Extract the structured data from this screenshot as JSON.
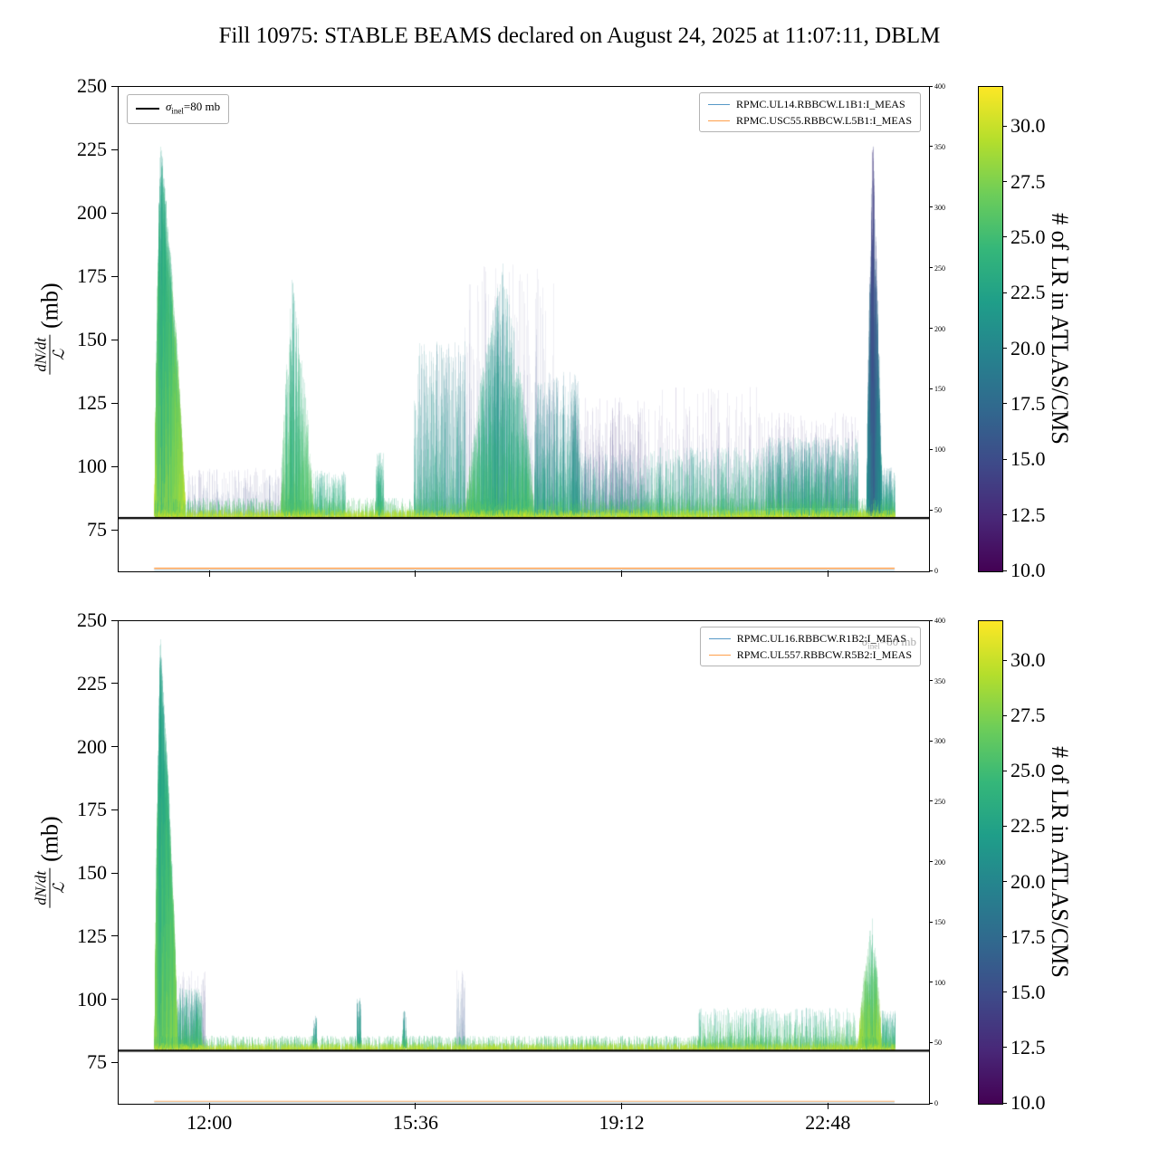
{
  "title": "Fill 10975: STABLE BEAMS declared on August 24, 2025 at 11:07:11, DBLM",
  "background": "#ffffff",
  "colors": {
    "viridis_stops": [
      "#440154",
      "#482878",
      "#3e4a89",
      "#31688e",
      "#26828e",
      "#1f9e89",
      "#35b779",
      "#6dcd59",
      "#b4de2c",
      "#fde725"
    ],
    "legend_lines": [
      "#1f77b4",
      "#ff7f0e"
    ],
    "sigma_line": "#000000"
  },
  "ylabel": {
    "numerator": "dN/dt",
    "denominator": "ℒ",
    "unit": "(mb)"
  },
  "colorbar": {
    "label": "# of LR in ATLAS/CMS",
    "vmin": 10.0,
    "vmax": 31.8,
    "ticks": [
      10.0,
      12.5,
      15.0,
      17.5,
      20.0,
      22.5,
      25.0,
      27.5,
      30.0
    ]
  },
  "axes": {
    "ylim": [
      59,
      250
    ],
    "yticks": [
      75,
      100,
      125,
      150,
      175,
      200,
      225,
      250
    ],
    "xlim_hours": [
      10.4,
      24.55
    ],
    "xticks": [
      {
        "h": 12.0,
        "label": "12:00"
      },
      {
        "h": 15.6,
        "label": "15:36"
      },
      {
        "h": 19.2,
        "label": "19:12"
      },
      {
        "h": 22.8,
        "label": "22:48"
      }
    ],
    "right_lim": [
      0,
      400
    ],
    "right_ticks": [
      0,
      50,
      100,
      150,
      200,
      250,
      300,
      350,
      400
    ]
  },
  "chart_data": [
    {
      "type": "spike-scatter",
      "position": "top",
      "legend": [
        "RPMC.UL14.RBBCW.L1B1:I_MEAS",
        "RPMC.USC55.RBBCW.L5B1:I_MEAS"
      ],
      "sigma_legend": {
        "symbol": "σ",
        "subscript": "inel",
        "suffix": "=80 mb"
      },
      "sigma_value": 80,
      "data_range_hours": [
        11.02,
        23.95
      ],
      "channel_lines": [
        {
          "right_axis_value": 2.5,
          "color": "#ff7f0e",
          "alpha": 0.9
        },
        {
          "right_axis_value": 1.0,
          "color": "#1f77b4",
          "alpha": 0.35
        }
      ],
      "clusters": [
        {
          "t0": 11.6,
          "t1": 13.3,
          "base": 81,
          "peak": 100,
          "n": 500,
          "exp": 2.6,
          "c0": 13,
          "c1": 18,
          "alpha": 0.1,
          "shape": "flat"
        },
        {
          "t0": 16.4,
          "t1": 18.0,
          "base": 82,
          "peak": 180,
          "n": 500,
          "exp": 2.6,
          "c0": 13,
          "c1": 18,
          "alpha": 0.08,
          "shape": "flat"
        },
        {
          "t0": 18.3,
          "t1": 19.6,
          "base": 82,
          "peak": 128,
          "n": 600,
          "exp": 2.6,
          "c0": 12,
          "c1": 17,
          "alpha": 0.1,
          "shape": "flat"
        },
        {
          "t0": 19.6,
          "t1": 21.7,
          "base": 83,
          "peak": 132,
          "n": 350,
          "exp": 2.4,
          "c0": 12,
          "c1": 16,
          "alpha": 0.09,
          "shape": "flat"
        },
        {
          "t0": 21.7,
          "t1": 23.3,
          "base": 84,
          "peak": 122,
          "n": 500,
          "exp": 2.2,
          "c0": 12,
          "c1": 17,
          "alpha": 0.1,
          "shape": "flat"
        },
        {
          "t0": 11.02,
          "t1": 11.55,
          "tpeak": 11.12,
          "base": 81,
          "peak": 232,
          "n": 3800,
          "exp": 1.7,
          "c0": 20,
          "c1": 31.5,
          "alpha": 0.18,
          "shape": "tri"
        },
        {
          "t0": 13.22,
          "t1": 13.8,
          "tpeak": 13.42,
          "base": 81,
          "peak": 177,
          "n": 900,
          "exp": 2.0,
          "c0": 21,
          "c1": 28,
          "alpha": 0.16,
          "shape": "tri"
        },
        {
          "t0": 13.8,
          "t1": 14.35,
          "base": 81,
          "peak": 99,
          "n": 400,
          "exp": 2.2,
          "c0": 21,
          "c1": 28,
          "alpha": 0.16,
          "shape": "flat"
        },
        {
          "t0": 14.88,
          "t1": 15.02,
          "base": 81,
          "peak": 107,
          "n": 130,
          "exp": 1.8,
          "c0": 21,
          "c1": 27,
          "alpha": 0.2,
          "shape": "flat"
        },
        {
          "t0": 15.55,
          "t1": 16.45,
          "base": 81,
          "peak": 150,
          "n": 700,
          "exp": 2.4,
          "c0": 17,
          "c1": 27,
          "alpha": 0.15,
          "shape": "flat"
        },
        {
          "t0": 16.45,
          "t1": 17.65,
          "tpeak": 17.1,
          "base": 81,
          "peak": 182,
          "n": 1800,
          "exp": 2.0,
          "c0": 18,
          "c1": 28,
          "alpha": 0.16,
          "shape": "tri"
        },
        {
          "t0": 17.65,
          "t1": 18.45,
          "base": 81,
          "peak": 138,
          "n": 800,
          "exp": 2.2,
          "c0": 17,
          "c1": 27,
          "alpha": 0.14,
          "shape": "flat"
        },
        {
          "t0": 18.45,
          "t1": 19.7,
          "base": 81,
          "peak": 106,
          "n": 600,
          "exp": 2.2,
          "c0": 19,
          "c1": 27,
          "alpha": 0.15,
          "shape": "flat"
        },
        {
          "t0": 19.7,
          "t1": 21.7,
          "base": 81,
          "peak": 108,
          "n": 1100,
          "exp": 2.2,
          "c0": 20,
          "c1": 28,
          "alpha": 0.16,
          "shape": "flat"
        },
        {
          "t0": 21.7,
          "t1": 23.3,
          "base": 81,
          "peak": 112,
          "n": 1500,
          "exp": 2.0,
          "c0": 19,
          "c1": 28,
          "alpha": 0.16,
          "shape": "flat"
        },
        {
          "t0": 23.45,
          "t1": 23.72,
          "tpeak": 23.56,
          "base": 81,
          "peak": 232,
          "n": 900,
          "exp": 1.5,
          "c0": 11,
          "c1": 24,
          "alpha": 0.2,
          "shape": "tri"
        },
        {
          "t0": 23.72,
          "t1": 23.95,
          "base": 81,
          "peak": 100,
          "n": 300,
          "exp": 2.0,
          "c0": 18,
          "c1": 28,
          "alpha": 0.16,
          "shape": "flat"
        },
        {
          "t0": 11.02,
          "t1": 23.95,
          "base": 80.3,
          "peak": 88,
          "n": 5000,
          "exp": 2.2,
          "c0": 23,
          "c1": 31.5,
          "alpha": 0.25,
          "shape": "flat"
        },
        {
          "t0": 11.02,
          "t1": 23.95,
          "base": 80.3,
          "peak": 83.5,
          "n": 3500,
          "exp": 1.5,
          "c0": 28,
          "c1": 31.7,
          "alpha": 0.4,
          "shape": "flat"
        }
      ]
    },
    {
      "type": "spike-scatter",
      "position": "bottom",
      "legend": [
        "RPMC.UL16.RBBCW.R1B2:I_MEAS",
        "RPMC.UL557.RBBCW.R5B2:I_MEAS"
      ],
      "ghost_label": {
        "symbol": "σ",
        "subscript": "inel",
        "suffix": "=80 mb"
      },
      "sigma_value": 80,
      "data_range_hours": [
        11.02,
        23.95
      ],
      "channel_lines": [
        {
          "right_axis_value": 2.0,
          "color": "#ff7f0e",
          "alpha": 0.5
        },
        {
          "right_axis_value": 1.0,
          "color": "#1f77b4",
          "alpha": 0.3
        }
      ],
      "clusters": [
        {
          "t0": 11.25,
          "t1": 11.9,
          "base": 81,
          "peak": 112,
          "n": 300,
          "exp": 2.4,
          "c0": 13,
          "c1": 18,
          "alpha": 0.09,
          "shape": "flat"
        },
        {
          "t0": 16.3,
          "t1": 16.45,
          "base": 81,
          "peak": 112,
          "n": 80,
          "exp": 1.8,
          "c0": 14,
          "c1": 20,
          "alpha": 0.08,
          "shape": "flat"
        },
        {
          "t0": 11.02,
          "t1": 11.42,
          "tpeak": 11.12,
          "base": 81,
          "peak": 246,
          "n": 3500,
          "exp": 1.6,
          "c0": 20,
          "c1": 30,
          "alpha": 0.18,
          "shape": "tri"
        },
        {
          "t0": 11.42,
          "t1": 11.85,
          "base": 81,
          "peak": 105,
          "n": 500,
          "exp": 2.2,
          "c0": 20,
          "c1": 29,
          "alpha": 0.18,
          "shape": "flat"
        },
        {
          "t0": 13.78,
          "t1": 13.85,
          "base": 81,
          "peak": 94,
          "n": 60,
          "exp": 1.8,
          "c0": 19,
          "c1": 27,
          "alpha": 0.25,
          "shape": "flat"
        },
        {
          "t0": 14.55,
          "t1": 14.63,
          "base": 81,
          "peak": 101,
          "n": 70,
          "exp": 1.8,
          "c0": 19,
          "c1": 27,
          "alpha": 0.25,
          "shape": "flat"
        },
        {
          "t0": 15.35,
          "t1": 15.42,
          "base": 81,
          "peak": 97,
          "n": 60,
          "exp": 1.8,
          "c0": 19,
          "c1": 27,
          "alpha": 0.25,
          "shape": "flat"
        },
        {
          "t0": 20.5,
          "t1": 23.25,
          "base": 81,
          "peak": 97,
          "n": 1400,
          "exp": 2.4,
          "c0": 21,
          "c1": 30,
          "alpha": 0.18,
          "shape": "flat"
        },
        {
          "t0": 23.3,
          "t1": 23.72,
          "tpeak": 23.55,
          "base": 81,
          "peak": 133,
          "n": 900,
          "exp": 1.8,
          "c0": 22,
          "c1": 31,
          "alpha": 0.2,
          "shape": "tri"
        },
        {
          "t0": 23.72,
          "t1": 23.95,
          "base": 81,
          "peak": 96,
          "n": 200,
          "exp": 2.0,
          "c0": 20,
          "c1": 29,
          "alpha": 0.18,
          "shape": "flat"
        },
        {
          "t0": 11.02,
          "t1": 23.95,
          "base": 80.3,
          "peak": 86,
          "n": 5500,
          "exp": 2.3,
          "c0": 23,
          "c1": 31.5,
          "alpha": 0.25,
          "shape": "flat"
        },
        {
          "t0": 11.02,
          "t1": 23.95,
          "base": 80.3,
          "peak": 83,
          "n": 3500,
          "exp": 1.5,
          "c0": 28,
          "c1": 31.7,
          "alpha": 0.4,
          "shape": "flat"
        }
      ]
    }
  ]
}
